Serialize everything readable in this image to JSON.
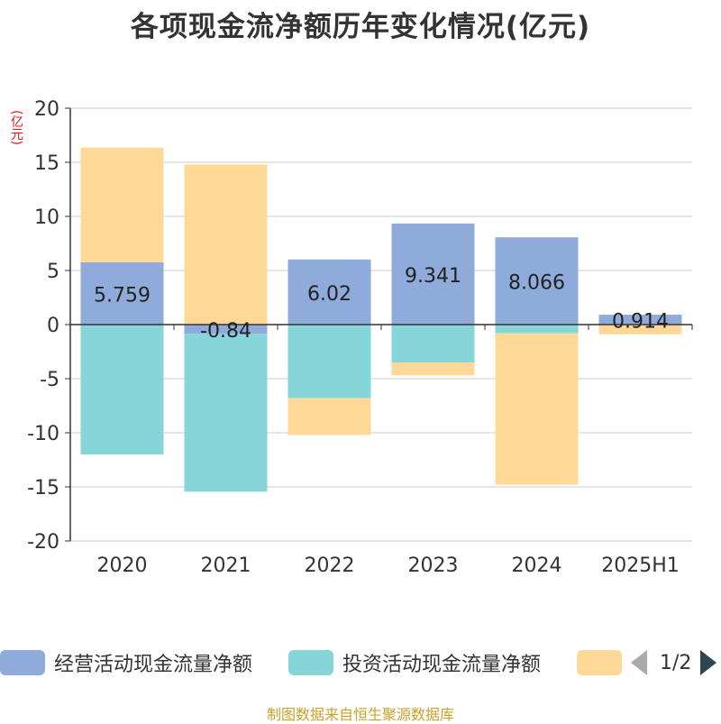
{
  "title": "各项现金流净额历年变化情况(亿元)",
  "unit_label": "(亿元)",
  "source": "制图数据来自恒生聚源数据库",
  "pager": {
    "text": "1/2"
  },
  "legend": [
    {
      "label": "经营活动现金流量净额",
      "color": "#8eabdb"
    },
    {
      "label": "投资活动现金流量净额",
      "color": "#86d5d8"
    },
    {
      "label": "",
      "color": "#fed897"
    }
  ],
  "chart_data": {
    "type": "bar",
    "stacked": true,
    "categories": [
      "2020",
      "2021",
      "2022",
      "2023",
      "2024",
      "2025H1"
    ],
    "series": [
      {
        "name": "经营活动现金流量净额",
        "color": "#8eabdb",
        "values": [
          5.759,
          -0.84,
          6.02,
          9.341,
          8.066,
          0.914
        ]
      },
      {
        "name": "投资活动现金流量净额",
        "color": "#86d5d8",
        "values": [
          -12.0,
          -14.6,
          -6.8,
          -3.5,
          -0.8,
          0.0
        ]
      },
      {
        "color": "#fed897",
        "values": [
          10.6,
          14.8,
          -3.4,
          -1.2,
          -14.0,
          -0.9
        ]
      }
    ],
    "data_labels": [
      "5.759",
      "-0.84",
      "6.02",
      "9.341",
      "8.066",
      "0.914"
    ],
    "yticks": [
      "20",
      "15",
      "10",
      "5",
      "0",
      "-5",
      "-10",
      "-15",
      "-20"
    ],
    "ylim": [
      -20,
      20
    ],
    "grid": true
  }
}
